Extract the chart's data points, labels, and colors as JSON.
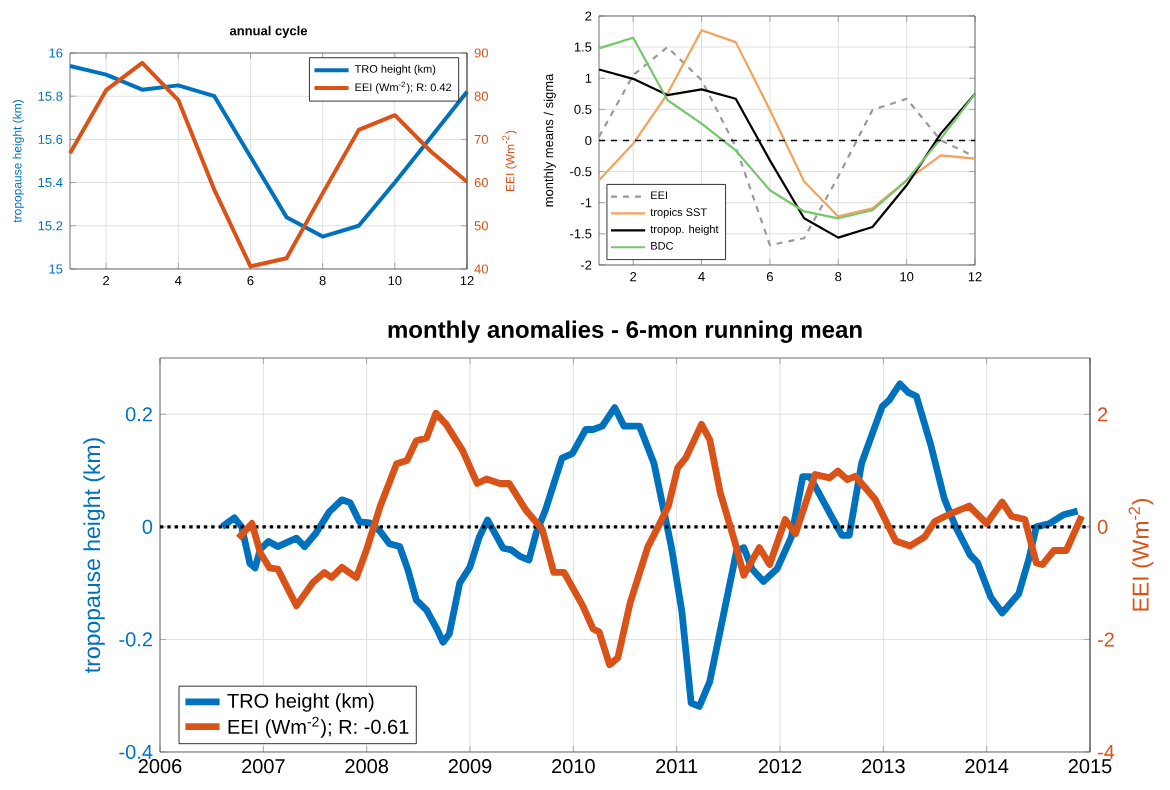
{
  "chart_data": [
    {
      "type": "line",
      "title": "annual cycle",
      "ylabel": "tropopause height (km)",
      "y2label": "EEI (Wm$^{-2}$)",
      "x": [
        1,
        2,
        3,
        4,
        5,
        6,
        7,
        8,
        9,
        10,
        11,
        12
      ],
      "xlim": [
        1,
        12
      ],
      "xticks": [
        2,
        4,
        6,
        8,
        10,
        12
      ],
      "ylim": [
        15,
        16
      ],
      "yticks": [
        15,
        15.2,
        15.4,
        15.6,
        15.8,
        16
      ],
      "y2lim": [
        40,
        90
      ],
      "y2ticks": [
        40,
        50,
        60,
        70,
        80,
        90
      ],
      "grid": true,
      "legend": "top right",
      "series": [
        {
          "name": "TRO height (km)",
          "color": "#0072bd",
          "values": [
            15.94,
            15.9,
            15.83,
            15.85,
            15.8,
            15.52,
            15.24,
            15.15,
            15.2,
            15.4,
            15.61,
            15.82
          ]
        },
        {
          "name": "EEI (Wm$^{-2}$); R: 0.42",
          "color": "#d95319",
          "axis": "y2",
          "values": [
            66.8,
            81.4,
            87.7,
            79.1,
            58.3,
            40.6,
            42.5,
            57.5,
            72.2,
            75.6,
            67.2,
            60.2
          ]
        }
      ]
    },
    {
      "type": "line",
      "ylabel": "monthly means / sigma",
      "x": [
        1,
        2,
        3,
        4,
        5,
        6,
        7,
        8,
        9,
        10,
        11,
        12
      ],
      "xlim": [
        1,
        12
      ],
      "xticks": [
        2,
        4,
        6,
        8,
        10,
        12
      ],
      "ylim": [
        -2,
        2
      ],
      "yticks": [
        -2,
        -1.5,
        -1,
        -0.5,
        0,
        0.5,
        1,
        1.5,
        2
      ],
      "grid": true,
      "legend": "bottom left",
      "ref_lines": [
        {
          "axis": "y",
          "value": 0,
          "color": "#000000",
          "line_style": "dashed"
        }
      ],
      "series": [
        {
          "name": "EEI",
          "color": "#999999",
          "line_style": "dashed",
          "values": [
            0.06,
            1.05,
            1.5,
            0.97,
            -0.1,
            -1.68,
            -1.57,
            -0.58,
            0.49,
            0.67,
            0.0,
            -0.26
          ]
        },
        {
          "name": "tropics SST",
          "color": "#f4a259",
          "values": [
            -0.64,
            -0.05,
            0.75,
            1.77,
            1.58,
            0.49,
            -0.66,
            -1.22,
            -1.09,
            -0.64,
            -0.24,
            -0.29
          ]
        },
        {
          "name": "tropop. height",
          "color": "#000000",
          "values": [
            1.14,
            0.99,
            0.73,
            0.82,
            0.67,
            -0.32,
            -1.25,
            -1.56,
            -1.39,
            -0.72,
            0.11,
            0.75
          ]
        },
        {
          "name": "BDC",
          "color": "#77c66e",
          "values": [
            1.48,
            1.65,
            0.65,
            0.27,
            -0.16,
            -0.8,
            -1.14,
            -1.25,
            -1.12,
            -0.64,
            0.03,
            0.75
          ]
        }
      ]
    },
    {
      "type": "line",
      "title": "monthly anomalies - 6-mon running mean",
      "ylabel": "tropopause height (km)",
      "y2label": "EEI (Wm$^{-2}$)",
      "xlim": [
        2006,
        2015
      ],
      "xticks": [
        2006,
        2007,
        2008,
        2009,
        2010,
        2011,
        2012,
        2013,
        2014,
        2015
      ],
      "ylim": [
        -0.4,
        0.3
      ],
      "yticks": [
        -0.4,
        -0.2,
        0,
        0.2
      ],
      "y2lim": [
        -4,
        3
      ],
      "y2ticks": [
        -4,
        -2,
        0,
        2
      ],
      "grid": true,
      "legend": "bottom left",
      "ref_lines": [
        {
          "axis": "y",
          "value": 0,
          "color": "#000000",
          "line_style": "dotted"
        }
      ],
      "series": [
        {
          "name": "TRO height (km)",
          "color": "#0072bd",
          "x": [
            2006.6,
            2006.72,
            2006.79,
            2006.87,
            2006.92,
            2006.97,
            2007.05,
            2007.14,
            2007.32,
            2007.4,
            2007.51,
            2007.64,
            2007.76,
            2007.84,
            2007.93,
            2008.03,
            2008.13,
            2008.22,
            2008.32,
            2008.4,
            2008.48,
            2008.58,
            2008.67,
            2008.74,
            2008.8,
            2008.9,
            2009.0,
            2009.09,
            2009.17,
            2009.24,
            2009.32,
            2009.4,
            2009.49,
            2009.57,
            2009.64,
            2009.73,
            2009.89,
            2009.99,
            2010.12,
            2010.19,
            2010.28,
            2010.4,
            2010.49,
            2010.64,
            2010.78,
            2010.88,
            2010.95,
            2011.05,
            2011.14,
            2011.22,
            2011.32,
            2011.46,
            2011.58,
            2011.65,
            2011.73,
            2011.84,
            2011.97,
            2012.11,
            2012.22,
            2012.29,
            2012.48,
            2012.6,
            2012.67,
            2012.79,
            2012.89,
            2012.99,
            2013.06,
            2013.16,
            2013.24,
            2013.32,
            2013.46,
            2013.59,
            2013.7,
            2013.84,
            2013.91,
            2014.04,
            2014.15,
            2014.31,
            2014.41,
            2014.48,
            2014.61,
            2014.75,
            2014.88
          ],
          "values": [
            0.0,
            0.016,
            0.0,
            -0.065,
            -0.073,
            -0.04,
            -0.026,
            -0.035,
            -0.02,
            -0.035,
            -0.011,
            0.027,
            0.048,
            0.043,
            0.009,
            0.007,
            -0.008,
            -0.03,
            -0.035,
            -0.077,
            -0.13,
            -0.148,
            -0.178,
            -0.205,
            -0.19,
            -0.1,
            -0.071,
            -0.018,
            0.012,
            -0.011,
            -0.038,
            -0.041,
            -0.053,
            -0.059,
            -0.011,
            0.03,
            0.122,
            0.13,
            0.173,
            0.173,
            0.179,
            0.212,
            0.179,
            0.179,
            0.113,
            0.025,
            -0.037,
            -0.15,
            -0.313,
            -0.319,
            -0.275,
            -0.15,
            -0.043,
            -0.037,
            -0.075,
            -0.097,
            -0.075,
            -0.018,
            0.089,
            0.089,
            0.025,
            -0.015,
            -0.015,
            0.113,
            0.164,
            0.214,
            0.226,
            0.254,
            0.239,
            0.232,
            0.145,
            0.05,
            0.0,
            -0.05,
            -0.063,
            -0.125,
            -0.153,
            -0.119,
            -0.056,
            0.0,
            0.006,
            0.022,
            0.028
          ]
        },
        {
          "name": "EEI (Wm$^{-2}$); R: -0.61",
          "color": "#d95319",
          "axis": "y2",
          "x": [
            2006.76,
            2006.89,
            2006.97,
            2007.06,
            2007.14,
            2007.32,
            2007.48,
            2007.59,
            2007.66,
            2007.76,
            2007.9,
            2008.0,
            2008.13,
            2008.29,
            2008.39,
            2008.48,
            2008.58,
            2008.67,
            2008.77,
            2008.93,
            2009.07,
            2009.16,
            2009.29,
            2009.38,
            2009.54,
            2009.7,
            2009.81,
            2009.91,
            2010.09,
            2010.19,
            2010.25,
            2010.35,
            2010.43,
            2010.55,
            2010.72,
            2010.82,
            2010.92,
            2011.01,
            2011.09,
            2011.24,
            2011.32,
            2011.42,
            2011.56,
            2011.65,
            2011.8,
            2011.9,
            2012.05,
            2012.15,
            2012.34,
            2012.48,
            2012.56,
            2012.65,
            2012.73,
            2012.92,
            2013.12,
            2013.26,
            2013.4,
            2013.5,
            2013.67,
            2013.83,
            2014.0,
            2014.15,
            2014.24,
            2014.37,
            2014.48,
            2014.54,
            2014.65,
            2014.77,
            2014.92
          ],
          "values": [
            -0.2,
            0.06,
            -0.46,
            -0.73,
            -0.75,
            -1.4,
            -0.99,
            -0.81,
            -0.9,
            -0.72,
            -0.9,
            -0.4,
            0.36,
            1.12,
            1.18,
            1.53,
            1.58,
            2.02,
            1.82,
            1.35,
            0.77,
            0.85,
            0.77,
            0.77,
            0.3,
            -0.05,
            -0.81,
            -0.81,
            -1.4,
            -1.81,
            -1.87,
            -2.45,
            -2.33,
            -1.35,
            -0.36,
            0.0,
            0.37,
            1.05,
            1.23,
            1.82,
            1.55,
            0.62,
            -0.25,
            -0.86,
            -0.37,
            -0.67,
            0.13,
            -0.12,
            0.93,
            0.87,
            0.99,
            0.84,
            0.9,
            0.49,
            -0.25,
            -0.34,
            -0.18,
            0.1,
            0.25,
            0.37,
            0.06,
            0.44,
            0.19,
            0.13,
            -0.64,
            -0.67,
            -0.42,
            -0.42,
            0.19
          ]
        }
      ]
    }
  ]
}
